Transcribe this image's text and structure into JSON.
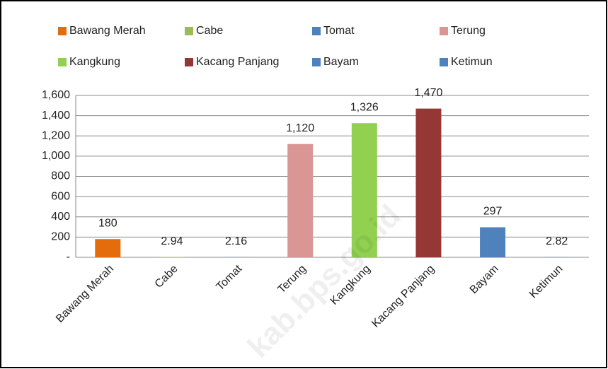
{
  "chart_data": {
    "type": "bar",
    "categories": [
      "Bawang Merah",
      "Cabe",
      "Tomat",
      "Terung",
      "Kangkung",
      "Kacang Panjang",
      "Bayam",
      "Ketimun"
    ],
    "series": [
      {
        "name": "Bawang Merah",
        "color": "#e46c0a",
        "values": [
          180,
          null,
          null,
          null,
          null,
          null,
          null,
          null
        ],
        "value_labels": [
          "180",
          null,
          null,
          null,
          null,
          null,
          null,
          null
        ]
      },
      {
        "name": "Cabe",
        "color": "#9bbb59",
        "values": [
          null,
          2.94,
          null,
          null,
          null,
          null,
          null,
          null
        ],
        "value_labels": [
          null,
          "2.94",
          null,
          null,
          null,
          null,
          null,
          null
        ]
      },
      {
        "name": "Tomat",
        "color": "#4f81bd",
        "values": [
          null,
          null,
          2.16,
          null,
          null,
          null,
          null,
          null
        ],
        "value_labels": [
          null,
          null,
          "2.16",
          null,
          null,
          null,
          null,
          null
        ]
      },
      {
        "name": "Terung",
        "color": "#d99694",
        "values": [
          null,
          null,
          null,
          1120,
          null,
          null,
          null,
          null
        ],
        "value_labels": [
          null,
          null,
          null,
          "1,120",
          null,
          null,
          null,
          null
        ]
      },
      {
        "name": "Kangkung",
        "color": "#92d050",
        "values": [
          null,
          null,
          null,
          null,
          1326,
          null,
          null,
          null
        ],
        "value_labels": [
          null,
          null,
          null,
          null,
          "1,326",
          null,
          null,
          null
        ]
      },
      {
        "name": "Kacang Panjang",
        "color": "#953735",
        "values": [
          null,
          null,
          null,
          null,
          null,
          1470,
          null,
          null
        ],
        "value_labels": [
          null,
          null,
          null,
          null,
          null,
          "1,470",
          null,
          null
        ]
      },
      {
        "name": "Bayam",
        "color": "#4f81bd",
        "values": [
          null,
          null,
          null,
          null,
          null,
          null,
          297,
          null
        ],
        "value_labels": [
          null,
          null,
          null,
          null,
          null,
          null,
          "297",
          null
        ]
      },
      {
        "name": "Ketimun",
        "color": "#4f81bd",
        "values": [
          null,
          null,
          null,
          null,
          null,
          null,
          null,
          2.82
        ],
        "value_labels": [
          null,
          null,
          null,
          null,
          null,
          null,
          null,
          "2.82"
        ]
      }
    ],
    "ylim": [
      0,
      1600
    ],
    "yticks": [
      {
        "value": 0,
        "label": "-"
      },
      200,
      400,
      600,
      800,
      {
        "value": 1000,
        "label": "1,000"
      },
      {
        "value": 1200,
        "label": "1,200"
      },
      {
        "value": 1400,
        "label": "1,400"
      },
      {
        "value": 1600,
        "label": "1,600"
      }
    ],
    "grid": true,
    "legend": "top",
    "watermark": "kab.bps.go.id"
  }
}
